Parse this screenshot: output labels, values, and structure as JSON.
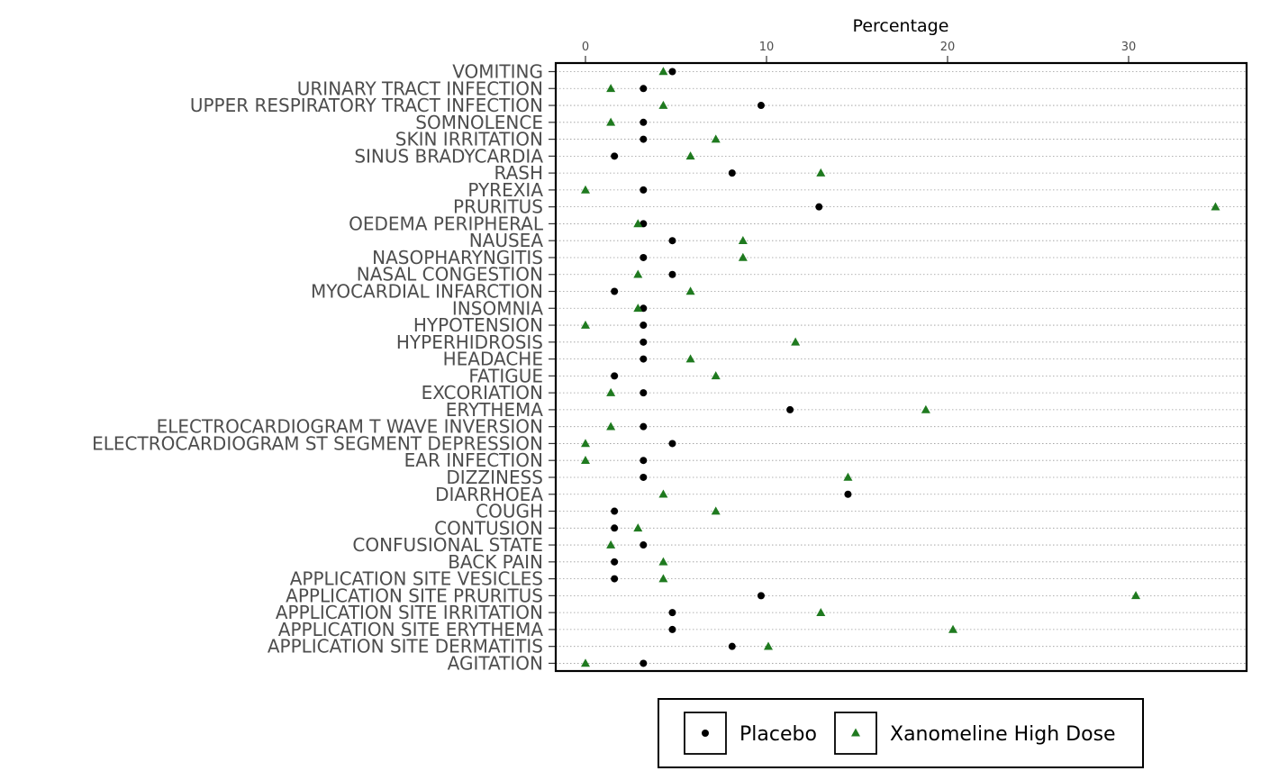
{
  "chart_data": {
    "type": "scatter",
    "title": "",
    "xlabel": "Percentage",
    "ylabel": "",
    "xlim": [
      -1.7,
      36.5
    ],
    "x_ticks": [
      0,
      10,
      20,
      30
    ],
    "x_axis_position": "top",
    "grid": "horizontal dotted",
    "legend_position": "bottom",
    "categories": [
      "VOMITING",
      "URINARY TRACT INFECTION",
      "UPPER RESPIRATORY TRACT INFECTION",
      "SOMNOLENCE",
      "SKIN IRRITATION",
      "SINUS BRADYCARDIA",
      "RASH",
      "PYREXIA",
      "PRURITUS",
      "OEDEMA PERIPHERAL",
      "NAUSEA",
      "NASOPHARYNGITIS",
      "NASAL CONGESTION",
      "MYOCARDIAL INFARCTION",
      "INSOMNIA",
      "HYPOTENSION",
      "HYPERHIDROSIS",
      "HEADACHE",
      "FATIGUE",
      "EXCORIATION",
      "ERYTHEMA",
      "ELECTROCARDIOGRAM T WAVE INVERSION",
      "ELECTROCARDIOGRAM ST SEGMENT DEPRESSION",
      "EAR INFECTION",
      "DIZZINESS",
      "DIARRHOEA",
      "COUGH",
      "CONTUSION",
      "CONFUSIONAL STATE",
      "BACK PAIN",
      "APPLICATION SITE VESICLES",
      "APPLICATION SITE PRURITUS",
      "APPLICATION SITE IRRITATION",
      "APPLICATION SITE ERYTHEMA",
      "APPLICATION SITE DERMATITIS",
      "AGITATION"
    ],
    "series": [
      {
        "name": "Placebo",
        "marker": "circle",
        "color": "#000000",
        "values": [
          4.8,
          3.2,
          9.7,
          3.2,
          3.2,
          1.6,
          8.1,
          3.2,
          12.9,
          3.2,
          4.8,
          3.2,
          4.8,
          1.6,
          3.2,
          3.2,
          3.2,
          3.2,
          1.6,
          3.2,
          11.3,
          3.2,
          4.8,
          3.2,
          3.2,
          14.5,
          1.6,
          1.6,
          3.2,
          1.6,
          1.6,
          9.7,
          4.8,
          4.8,
          8.1,
          3.2
        ]
      },
      {
        "name": "Xanomeline High Dose",
        "marker": "triangle",
        "color": "#1f7a1f",
        "values": [
          4.3,
          1.4,
          4.3,
          1.4,
          7.2,
          5.8,
          13.0,
          0,
          34.8,
          2.9,
          8.7,
          8.7,
          2.9,
          5.8,
          2.9,
          0,
          11.6,
          5.8,
          7.2,
          1.4,
          18.8,
          1.4,
          0,
          0,
          14.5,
          4.3,
          7.2,
          2.9,
          1.4,
          4.3,
          4.3,
          30.4,
          13.0,
          20.3,
          10.1,
          0
        ]
      }
    ]
  }
}
